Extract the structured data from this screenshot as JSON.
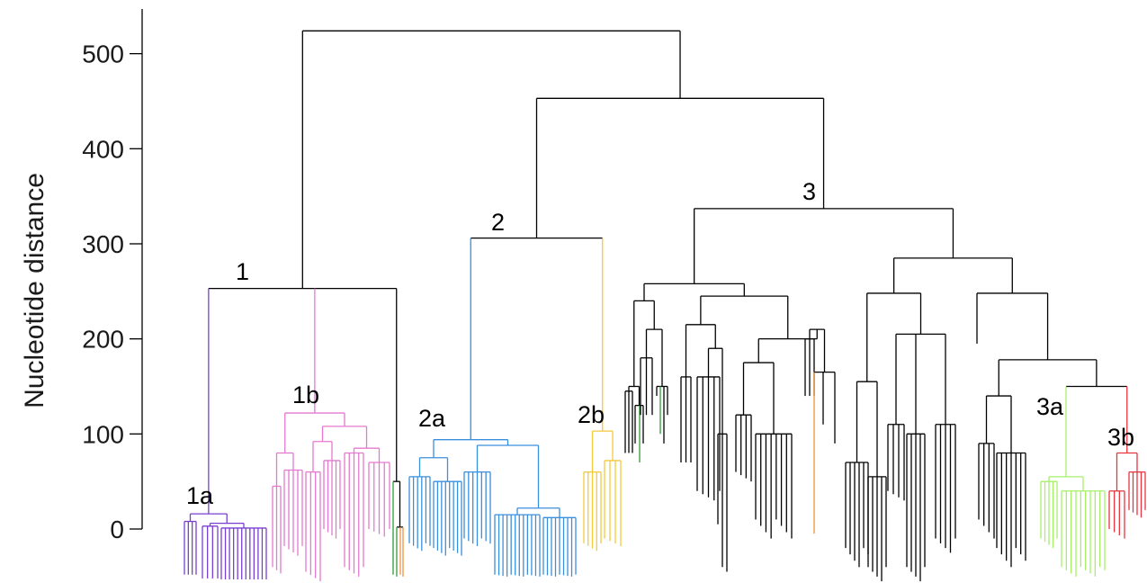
{
  "chart_data": {
    "type": "dendrogram",
    "title": "",
    "xlabel": "",
    "ylabel": "Nucleotide distance",
    "ylim": [
      -55,
      535
    ],
    "yticks": [
      {
        "value": 0,
        "label": "0"
      },
      {
        "value": 100,
        "label": "100"
      },
      {
        "value": 200,
        "label": "200"
      },
      {
        "value": 300,
        "label": "300"
      },
      {
        "value": 400,
        "label": "400"
      },
      {
        "value": 500,
        "label": "500"
      }
    ],
    "root_height": 524,
    "clades": [
      {
        "label": "1",
        "height": 253,
        "color": "#000000"
      },
      {
        "label": "1a",
        "height": 16,
        "color": "#7a3fd1"
      },
      {
        "label": "1b",
        "height": 122,
        "color": "#e47ad0"
      },
      {
        "label": "2",
        "height": 306,
        "color": "#000000"
      },
      {
        "label": "2a",
        "height": 94,
        "color": "#3a8fdc"
      },
      {
        "label": "2b",
        "height": 103,
        "color": "#f3c93c"
      },
      {
        "label": "3",
        "height": 337,
        "color": "#000000"
      },
      {
        "label": "3a",
        "height": 140,
        "color": "#a6f06a"
      },
      {
        "label": "3b",
        "height": 149,
        "color": "#e8343f"
      }
    ],
    "minor_lineage_colors": [
      "#2e9b3a",
      "#f0913a"
    ],
    "colors": {
      "backbone": "#000000",
      "clade_1a": "#7a3fd1",
      "clade_1b": "#e47ad0",
      "clade_2a": "#3a8fdc",
      "clade_2b": "#f3c93c",
      "clade_3a": "#a6f06a",
      "clade_3b": "#e8343f",
      "green_lineage": "#2e9b3a",
      "orange_lineage": "#f0913a"
    }
  }
}
